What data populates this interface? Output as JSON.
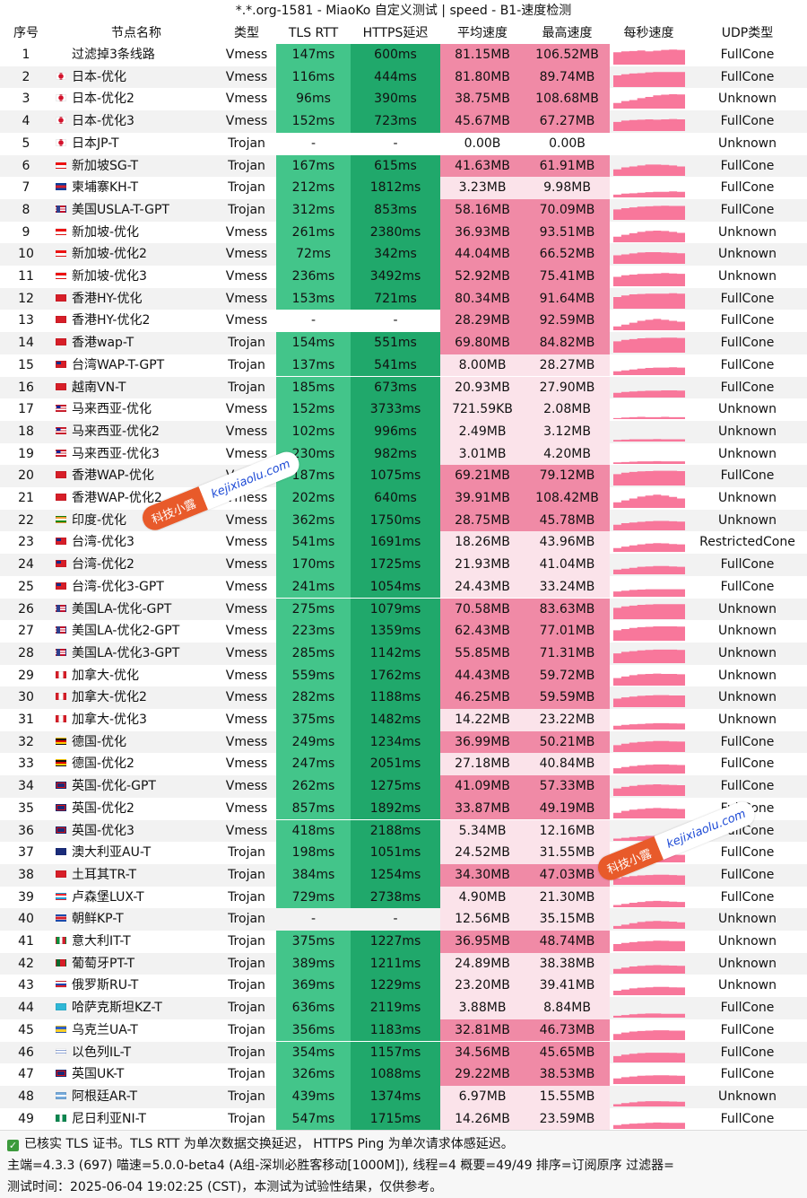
{
  "title": "*.*.org-1581 - MiaoKo 自定义测试 | speed - B1-速度检测",
  "columns": {
    "idx": "序号",
    "name": "节点名称",
    "type": "类型",
    "tls": "TLS RTT",
    "https": "HTTPS延迟",
    "avg": "平均速度",
    "max": "最高速度",
    "per_sec": "每秒速度",
    "udp": "UDP类型"
  },
  "colors": {
    "tls_fill": "#43c58a",
    "https_fill": "#20a86b",
    "fast_fill": "#f08aa6",
    "slow_fill": "#fbe3ea",
    "spark": "#f8779b"
  },
  "rows": [
    {
      "idx": "1",
      "flag": "none",
      "name": "过滤掉3条线路",
      "type": "Vmess",
      "tls": "147ms",
      "https": "600ms",
      "avg": "81.15MB",
      "max": "106.52MB",
      "udp": "FullCone",
      "avg_level": 0.9,
      "spark": [
        0.65,
        0.7,
        0.72,
        0.75,
        0.7,
        0.74,
        0.78,
        0.8,
        0.78
      ]
    },
    {
      "idx": "2",
      "flag": "jp",
      "name": "日本-优化",
      "type": "Vmess",
      "tls": "116ms",
      "https": "444ms",
      "avg": "81.80MB",
      "max": "89.74MB",
      "udp": "FullCone",
      "avg_level": 0.9,
      "spark": [
        0.62,
        0.68,
        0.72,
        0.74,
        0.78,
        0.8,
        0.8,
        0.8,
        0.8
      ]
    },
    {
      "idx": "3",
      "flag": "jp",
      "name": "日本-优化2",
      "type": "Vmess",
      "tls": "96ms",
      "https": "390ms",
      "avg": "38.75MB",
      "max": "108.68MB",
      "udp": "Unknown",
      "avg_level": 0.55,
      "spark": [
        0.3,
        0.4,
        0.45,
        0.55,
        0.62,
        0.7,
        0.74,
        0.76,
        0.75
      ]
    },
    {
      "idx": "4",
      "flag": "jp",
      "name": "日本-优化3",
      "type": "Vmess",
      "tls": "152ms",
      "https": "723ms",
      "avg": "45.67MB",
      "max": "67.27MB",
      "udp": "FullCone",
      "avg_level": 0.6,
      "spark": [
        0.48,
        0.55,
        0.58,
        0.6,
        0.62,
        0.6,
        0.62,
        0.64,
        0.62
      ]
    },
    {
      "idx": "5",
      "flag": "jp",
      "name": "日本JP-T",
      "type": "Trojan",
      "tls": "-",
      "https": "-",
      "avg": "0.00B",
      "max": "0.00B",
      "udp": "Unknown",
      "avg_level": 0,
      "spark": []
    },
    {
      "idx": "6",
      "flag": "sg",
      "name": "新加坡SG-T",
      "type": "Trojan",
      "tls": "167ms",
      "https": "615ms",
      "avg": "41.63MB",
      "max": "61.91MB",
      "udp": "FullCone",
      "avg_level": 0.58,
      "spark": [
        0.35,
        0.45,
        0.5,
        0.55,
        0.6,
        0.6,
        0.58,
        0.55,
        0.5
      ]
    },
    {
      "idx": "7",
      "flag": "kh",
      "name": "柬埔寨KH-T",
      "type": "Trojan",
      "tls": "212ms",
      "https": "1812ms",
      "avg": "3.23MB",
      "max": "9.98MB",
      "udp": "FullCone",
      "avg_level": 0.12,
      "spark": [
        0.15,
        0.2,
        0.22,
        0.25,
        0.28,
        0.3,
        0.3,
        0.32,
        0.3
      ]
    },
    {
      "idx": "8",
      "flag": "us",
      "name": "美国USLA-T-GPT",
      "type": "Trojan",
      "tls": "312ms",
      "https": "853ms",
      "avg": "58.16MB",
      "max": "70.09MB",
      "udp": "FullCone",
      "avg_level": 0.72,
      "spark": [
        0.55,
        0.62,
        0.66,
        0.7,
        0.72,
        0.74,
        0.75,
        0.74,
        0.74
      ]
    },
    {
      "idx": "9",
      "flag": "sg",
      "name": "新加坡-优化",
      "type": "Vmess",
      "tls": "261ms",
      "https": "2380ms",
      "avg": "36.93MB",
      "max": "93.51MB",
      "udp": "Unknown",
      "avg_level": 0.52,
      "spark": [
        0.3,
        0.4,
        0.48,
        0.55,
        0.6,
        0.62,
        0.6,
        0.55,
        0.5
      ]
    },
    {
      "idx": "10",
      "flag": "sg",
      "name": "新加坡-优化2",
      "type": "Vmess",
      "tls": "72ms",
      "https": "342ms",
      "avg": "44.04MB",
      "max": "66.52MB",
      "udp": "Unknown",
      "avg_level": 0.6,
      "spark": [
        0.45,
        0.5,
        0.55,
        0.6,
        0.62,
        0.62,
        0.6,
        0.58,
        0.56
      ]
    },
    {
      "idx": "11",
      "flag": "sg",
      "name": "新加坡-优化3",
      "type": "Vmess",
      "tls": "236ms",
      "https": "3492ms",
      "avg": "52.92MB",
      "max": "75.41MB",
      "udp": "Unknown",
      "avg_level": 0.68,
      "spark": [
        0.5,
        0.58,
        0.62,
        0.65,
        0.66,
        0.68,
        0.7,
        0.68,
        0.66
      ]
    },
    {
      "idx": "12",
      "flag": "hk",
      "name": "香港HY-优化",
      "type": "Vmess",
      "tls": "153ms",
      "https": "721ms",
      "avg": "80.34MB",
      "max": "91.64MB",
      "udp": "FullCone",
      "avg_level": 0.9,
      "spark": [
        0.62,
        0.7,
        0.76,
        0.78,
        0.8,
        0.8,
        0.8,
        0.82,
        0.8
      ]
    },
    {
      "idx": "13",
      "flag": "hk",
      "name": "香港HY-优化2",
      "type": "Vmess",
      "tls": "-",
      "https": "-",
      "avg": "28.29MB",
      "max": "92.59MB",
      "udp": "FullCone",
      "avg_level": 0.45,
      "spark": [
        0.2,
        0.3,
        0.4,
        0.5,
        0.55,
        0.6,
        0.55,
        0.5,
        0.45
      ]
    },
    {
      "idx": "14",
      "flag": "hk",
      "name": "香港wap-T",
      "type": "Trojan",
      "tls": "154ms",
      "https": "551ms",
      "avg": "69.80MB",
      "max": "84.82MB",
      "udp": "FullCone",
      "avg_level": 0.82,
      "spark": [
        0.6,
        0.68,
        0.72,
        0.76,
        0.78,
        0.78,
        0.8,
        0.8,
        0.78
      ]
    },
    {
      "idx": "15",
      "flag": "tw",
      "name": "台湾WAP-T-GPT",
      "type": "Trojan",
      "tls": "137ms",
      "https": "541ms",
      "avg": "8.00MB",
      "max": "28.27MB",
      "udp": "FullCone",
      "avg_level": 0.2,
      "spark": [
        0.2,
        0.25,
        0.3,
        0.35,
        0.38,
        0.4,
        0.4,
        0.42,
        0.4
      ]
    },
    {
      "idx": "16",
      "flag": "vn",
      "name": "越南VN-T",
      "type": "Trojan",
      "tls": "185ms",
      "https": "673ms",
      "avg": "20.93MB",
      "max": "27.90MB",
      "udp": "FullCone",
      "avg_level": 0.38,
      "spark": [
        0.25,
        0.3,
        0.32,
        0.35,
        0.36,
        0.36,
        0.38,
        0.38,
        0.37
      ]
    },
    {
      "idx": "17",
      "flag": "my",
      "name": "马来西亚-优化",
      "type": "Vmess",
      "tls": "152ms",
      "https": "3733ms",
      "avg": "721.59KB",
      "max": "2.08MB",
      "udp": "Unknown",
      "avg_level": 0.05,
      "spark": [
        0.05,
        0.08,
        0.1,
        0.12,
        0.1,
        0.1,
        0.12,
        0.1,
        0.1
      ]
    },
    {
      "idx": "18",
      "flag": "my",
      "name": "马来西亚-优化2",
      "type": "Vmess",
      "tls": "102ms",
      "https": "996ms",
      "avg": "2.49MB",
      "max": "3.12MB",
      "udp": "Unknown",
      "avg_level": 0.08,
      "spark": [
        0.08,
        0.1,
        0.12,
        0.12,
        0.12,
        0.13,
        0.12,
        0.12,
        0.12
      ]
    },
    {
      "idx": "19",
      "flag": "my",
      "name": "马来西亚-优化3",
      "type": "Vmess",
      "tls": "230ms",
      "https": "982ms",
      "avg": "3.01MB",
      "max": "4.20MB",
      "udp": "Unknown",
      "avg_level": 0.1,
      "spark": [
        0.08,
        0.1,
        0.12,
        0.14,
        0.14,
        0.15,
        0.14,
        0.14,
        0.14
      ]
    },
    {
      "idx": "20",
      "flag": "hk",
      "name": "香港WAP-优化",
      "type": "Vmess",
      "tls": "187ms",
      "https": "1075ms",
      "avg": "69.21MB",
      "max": "79.12MB",
      "udp": "FullCone",
      "avg_level": 0.82,
      "spark": [
        0.6,
        0.68,
        0.72,
        0.75,
        0.76,
        0.78,
        0.78,
        0.78,
        0.76
      ]
    },
    {
      "idx": "21",
      "flag": "hk",
      "name": "香港WAP-优化2",
      "type": "Vmess",
      "tls": "202ms",
      "https": "640ms",
      "avg": "39.91MB",
      "max": "108.42MB",
      "udp": "Unknown",
      "avg_level": 0.56,
      "spark": [
        0.3,
        0.4,
        0.5,
        0.6,
        0.65,
        0.7,
        0.65,
        0.58,
        0.5
      ]
    },
    {
      "idx": "22",
      "flag": "in",
      "name": "印度-优化",
      "type": "Vmess",
      "tls": "362ms",
      "https": "1750ms",
      "avg": "28.75MB",
      "max": "45.78MB",
      "udp": "Unknown",
      "avg_level": 0.45,
      "spark": [
        0.3,
        0.38,
        0.42,
        0.45,
        0.48,
        0.5,
        0.5,
        0.48,
        0.46
      ]
    },
    {
      "idx": "23",
      "flag": "tw",
      "name": "台湾-优化3",
      "type": "Vmess",
      "tls": "541ms",
      "https": "1691ms",
      "avg": "18.26MB",
      "max": "43.96MB",
      "udp": "RestrictedCone",
      "avg_level": 0.34,
      "spark": [
        0.2,
        0.28,
        0.35,
        0.4,
        0.44,
        0.46,
        0.45,
        0.42,
        0.4
      ]
    },
    {
      "idx": "24",
      "flag": "tw",
      "name": "台湾-优化2",
      "type": "Vmess",
      "tls": "170ms",
      "https": "1725ms",
      "avg": "21.93MB",
      "max": "41.04MB",
      "udp": "FullCone",
      "avg_level": 0.38,
      "spark": [
        0.25,
        0.3,
        0.35,
        0.4,
        0.42,
        0.44,
        0.44,
        0.42,
        0.4
      ]
    },
    {
      "idx": "25",
      "flag": "tw",
      "name": "台湾-优化3-GPT",
      "type": "Vmess",
      "tls": "241ms",
      "https": "1054ms",
      "avg": "24.43MB",
      "max": "33.24MB",
      "udp": "FullCone",
      "avg_level": 0.4,
      "spark": [
        0.28,
        0.32,
        0.36,
        0.38,
        0.4,
        0.4,
        0.4,
        0.4,
        0.4
      ]
    },
    {
      "idx": "26",
      "flag": "us",
      "name": "美国LA-优化-GPT",
      "type": "Vmess",
      "tls": "275ms",
      "https": "1079ms",
      "avg": "70.58MB",
      "max": "83.63MB",
      "udp": "Unknown",
      "avg_level": 0.83,
      "spark": [
        0.6,
        0.68,
        0.72,
        0.76,
        0.78,
        0.8,
        0.8,
        0.8,
        0.8
      ]
    },
    {
      "idx": "27",
      "flag": "us",
      "name": "美国LA-优化2-GPT",
      "type": "Vmess",
      "tls": "223ms",
      "https": "1359ms",
      "avg": "62.43MB",
      "max": "77.01MB",
      "udp": "Unknown",
      "avg_level": 0.76,
      "spark": [
        0.55,
        0.62,
        0.68,
        0.72,
        0.74,
        0.76,
        0.76,
        0.76,
        0.75
      ]
    },
    {
      "idx": "28",
      "flag": "us",
      "name": "美国LA-优化3-GPT",
      "type": "Vmess",
      "tls": "285ms",
      "https": "1142ms",
      "avg": "55.85MB",
      "max": "71.31MB",
      "udp": "Unknown",
      "avg_level": 0.7,
      "spark": [
        0.52,
        0.6,
        0.64,
        0.68,
        0.7,
        0.72,
        0.72,
        0.72,
        0.7
      ]
    },
    {
      "idx": "29",
      "flag": "ca",
      "name": "加拿大-优化",
      "type": "Vmess",
      "tls": "559ms",
      "https": "1762ms",
      "avg": "44.43MB",
      "max": "59.72MB",
      "udp": "Unknown",
      "avg_level": 0.6,
      "spark": [
        0.4,
        0.48,
        0.55,
        0.6,
        0.62,
        0.64,
        0.62,
        0.62,
        0.6
      ]
    },
    {
      "idx": "30",
      "flag": "ca",
      "name": "加拿大-优化2",
      "type": "Vmess",
      "tls": "282ms",
      "https": "1188ms",
      "avg": "46.25MB",
      "max": "59.59MB",
      "udp": "Unknown",
      "avg_level": 0.62,
      "spark": [
        0.45,
        0.52,
        0.56,
        0.6,
        0.62,
        0.64,
        0.64,
        0.62,
        0.62
      ]
    },
    {
      "idx": "31",
      "flag": "ca",
      "name": "加拿大-优化3",
      "type": "Vmess",
      "tls": "375ms",
      "https": "1482ms",
      "avg": "14.22MB",
      "max": "23.22MB",
      "udp": "Unknown",
      "avg_level": 0.3,
      "spark": [
        0.2,
        0.25,
        0.28,
        0.3,
        0.32,
        0.34,
        0.34,
        0.33,
        0.32
      ]
    },
    {
      "idx": "32",
      "flag": "de",
      "name": "德国-优化",
      "type": "Vmess",
      "tls": "249ms",
      "https": "1234ms",
      "avg": "36.99MB",
      "max": "50.21MB",
      "udp": "FullCone",
      "avg_level": 0.53,
      "spark": [
        0.36,
        0.44,
        0.5,
        0.54,
        0.56,
        0.58,
        0.58,
        0.56,
        0.55
      ]
    },
    {
      "idx": "33",
      "flag": "de",
      "name": "德国-优化2",
      "type": "Vmess",
      "tls": "247ms",
      "https": "2051ms",
      "avg": "27.18MB",
      "max": "40.84MB",
      "udp": "FullCone",
      "avg_level": 0.44,
      "spark": [
        0.28,
        0.35,
        0.4,
        0.44,
        0.46,
        0.48,
        0.48,
        0.46,
        0.45
      ]
    },
    {
      "idx": "34",
      "flag": "gb",
      "name": "英国-优化-GPT",
      "type": "Vmess",
      "tls": "262ms",
      "https": "1275ms",
      "avg": "41.09MB",
      "max": "57.33MB",
      "udp": "FullCone",
      "avg_level": 0.58,
      "spark": [
        0.4,
        0.48,
        0.54,
        0.58,
        0.6,
        0.62,
        0.6,
        0.58,
        0.57
      ]
    },
    {
      "idx": "35",
      "flag": "gb",
      "name": "英国-优化2",
      "type": "Vmess",
      "tls": "857ms",
      "https": "1892ms",
      "avg": "33.87MB",
      "max": "49.19MB",
      "udp": "FullCone",
      "avg_level": 0.5,
      "spark": [
        0.3,
        0.4,
        0.46,
        0.5,
        0.54,
        0.55,
        0.54,
        0.52,
        0.5
      ]
    },
    {
      "idx": "36",
      "flag": "gb",
      "name": "英国-优化3",
      "type": "Vmess",
      "tls": "418ms",
      "https": "2188ms",
      "avg": "5.34MB",
      "max": "12.16MB",
      "udp": "FullCone",
      "avg_level": 0.15,
      "spark": [
        0.12,
        0.16,
        0.2,
        0.24,
        0.26,
        0.26,
        0.25,
        0.24,
        0.22
      ]
    },
    {
      "idx": "37",
      "flag": "au",
      "name": "澳大利亚AU-T",
      "type": "Trojan",
      "tls": "198ms",
      "https": "1051ms",
      "avg": "24.52MB",
      "max": "31.55MB",
      "udp": "FullCone",
      "avg_level": 0.4,
      "spark": [
        0.28,
        0.32,
        0.36,
        0.38,
        0.4,
        0.4,
        0.4,
        0.4,
        0.4
      ]
    },
    {
      "idx": "38",
      "flag": "tr",
      "name": "土耳其TR-T",
      "type": "Trojan",
      "tls": "384ms",
      "https": "1254ms",
      "avg": "34.30MB",
      "max": "47.03MB",
      "udp": "FullCone",
      "avg_level": 0.5,
      "spark": [
        0.35,
        0.42,
        0.46,
        0.5,
        0.52,
        0.54,
        0.54,
        0.52,
        0.5
      ]
    },
    {
      "idx": "39",
      "flag": "lu",
      "name": "卢森堡LUX-T",
      "type": "Trojan",
      "tls": "729ms",
      "https": "2738ms",
      "avg": "4.90MB",
      "max": "21.30MB",
      "udp": "FullCone",
      "avg_level": 0.15,
      "spark": [
        0.12,
        0.18,
        0.24,
        0.28,
        0.32,
        0.34,
        0.32,
        0.3,
        0.28
      ]
    },
    {
      "idx": "40",
      "flag": "kp",
      "name": "朝鲜KP-T",
      "type": "Trojan",
      "tls": "-",
      "https": "-",
      "avg": "12.56MB",
      "max": "35.15MB",
      "udp": "Unknown",
      "avg_level": 0.28,
      "spark": [
        0.15,
        0.22,
        0.3,
        0.36,
        0.4,
        0.42,
        0.4,
        0.38,
        0.35
      ]
    },
    {
      "idx": "41",
      "flag": "it",
      "name": "意大利IT-T",
      "type": "Trojan",
      "tls": "375ms",
      "https": "1227ms",
      "avg": "36.95MB",
      "max": "48.74MB",
      "udp": "Unknown",
      "avg_level": 0.53,
      "spark": [
        0.38,
        0.44,
        0.48,
        0.52,
        0.54,
        0.56,
        0.55,
        0.54,
        0.54
      ]
    },
    {
      "idx": "42",
      "flag": "pt",
      "name": "葡萄牙PT-T",
      "type": "Trojan",
      "tls": "389ms",
      "https": "1211ms",
      "avg": "24.89MB",
      "max": "38.38MB",
      "udp": "Unknown",
      "avg_level": 0.41,
      "spark": [
        0.25,
        0.32,
        0.38,
        0.42,
        0.44,
        0.45,
        0.44,
        0.43,
        0.42
      ]
    },
    {
      "idx": "43",
      "flag": "ru",
      "name": "俄罗斯RU-T",
      "type": "Trojan",
      "tls": "369ms",
      "https": "1229ms",
      "avg": "23.20MB",
      "max": "39.41MB",
      "udp": "Unknown",
      "avg_level": 0.39,
      "spark": [
        0.24,
        0.3,
        0.36,
        0.4,
        0.42,
        0.44,
        0.44,
        0.42,
        0.41
      ]
    },
    {
      "idx": "44",
      "flag": "kz",
      "name": "哈萨克斯坦KZ-T",
      "type": "Trojan",
      "tls": "636ms",
      "https": "2119ms",
      "avg": "3.88MB",
      "max": "8.84MB",
      "udp": "FullCone",
      "avg_level": 0.12,
      "spark": [
        0.1,
        0.14,
        0.18,
        0.2,
        0.22,
        0.22,
        0.2,
        0.2,
        0.2
      ]
    },
    {
      "idx": "45",
      "flag": "ua",
      "name": "乌克兰UA-T",
      "type": "Trojan",
      "tls": "356ms",
      "https": "1183ms",
      "avg": "32.81MB",
      "max": "46.73MB",
      "udp": "FullCone",
      "avg_level": 0.49,
      "spark": [
        0.32,
        0.4,
        0.45,
        0.48,
        0.5,
        0.52,
        0.52,
        0.5,
        0.5
      ]
    },
    {
      "idx": "46",
      "flag": "il",
      "name": "以色列IL-T",
      "type": "Trojan",
      "tls": "354ms",
      "https": "1157ms",
      "avg": "34.56MB",
      "max": "45.65MB",
      "udp": "FullCone",
      "avg_level": 0.5,
      "spark": [
        0.34,
        0.42,
        0.46,
        0.5,
        0.52,
        0.52,
        0.52,
        0.51,
        0.5
      ]
    },
    {
      "idx": "47",
      "flag": "gb",
      "name": "英国UK-T",
      "type": "Trojan",
      "tls": "326ms",
      "https": "1088ms",
      "avg": "29.22MB",
      "max": "38.53MB",
      "udp": "FullCone",
      "avg_level": 0.45,
      "spark": [
        0.3,
        0.36,
        0.4,
        0.44,
        0.45,
        0.46,
        0.46,
        0.45,
        0.44
      ]
    },
    {
      "idx": "48",
      "flag": "ar",
      "name": "阿根廷AR-T",
      "type": "Trojan",
      "tls": "439ms",
      "https": "1374ms",
      "avg": "6.97MB",
      "max": "15.55MB",
      "udp": "Unknown",
      "avg_level": 0.18,
      "spark": [
        0.12,
        0.18,
        0.22,
        0.26,
        0.28,
        0.28,
        0.27,
        0.26,
        0.25
      ]
    },
    {
      "idx": "49",
      "flag": "ng",
      "name": "尼日利亚NI-T",
      "type": "Trojan",
      "tls": "547ms",
      "https": "1715ms",
      "avg": "14.26MB",
      "max": "23.59MB",
      "udp": "FullCone",
      "avg_level": 0.3,
      "spark": [
        0.2,
        0.25,
        0.28,
        0.3,
        0.32,
        0.34,
        0.33,
        0.32,
        0.32
      ]
    }
  ],
  "footer": {
    "line1": "已核实 TLS 证书。TLS RTT 为单次数据交换延迟， HTTPS Ping 为单次请求体感延迟。",
    "line2": "主端=4.3.3 (697) 喵速=5.0.0-beta4 (A组-深圳必胜客移动[1000M]), 线程=4 概要=49/49 排序=订阅原序 过滤器=",
    "line3": "测试时间：2025-06-04 19:02:25 (CST)，本测试为试验性结果，仅供参考。"
  },
  "watermarks": [
    {
      "badge": "科技小露",
      "site": "kejixiaolu.com"
    },
    {
      "badge": "科技小露",
      "site": "kejixiaolu.com"
    }
  ]
}
